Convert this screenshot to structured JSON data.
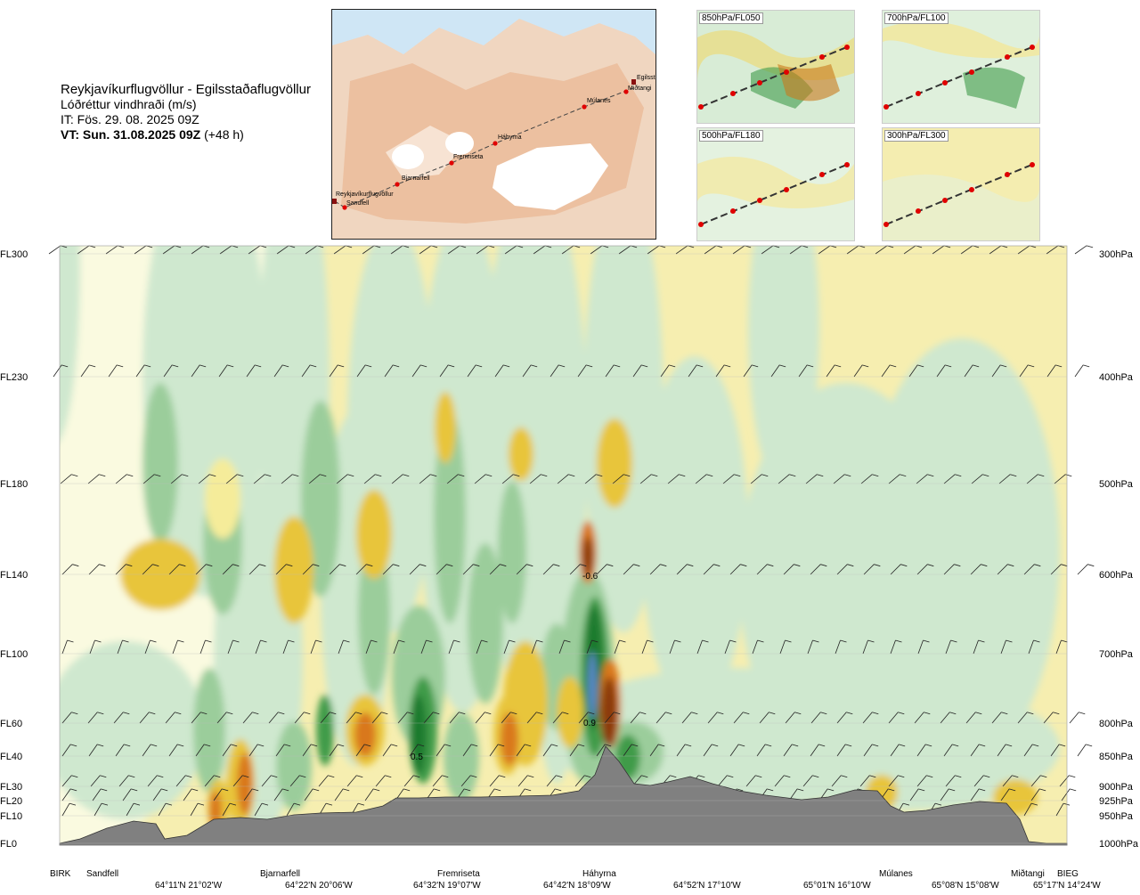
{
  "header": {
    "title": "Reykjavíkurflugvöllur - Egilsstaðaflugvöllur",
    "subtitle": "Lóðréttur vindhraði (m/s)",
    "issue_time": "IT: Fös. 29. 08. 2025 09Z",
    "valid_time": "VT: Sun. 31.08.2025 09Z",
    "valid_offset": "(+48 h)"
  },
  "map": {
    "route_points": [
      "Reykjavíkurflugvöllur",
      "Sandfell",
      "Bjarnarfell",
      "Fremriseta",
      "Háhyrna",
      "Múlanes",
      "Egilsstaðir",
      "Miðtangi"
    ]
  },
  "thumbnails": [
    {
      "label": "850hPa/FL050"
    },
    {
      "label": "700hPa/FL100"
    },
    {
      "label": "500hPa/FL180"
    },
    {
      "label": "300hPa/FL300"
    }
  ],
  "chart_data": {
    "type": "heatmap",
    "title": "Lóðréttur vindhraði (m/s)",
    "levels": [
      {
        "fl": "FL300",
        "hpa": "300hPa"
      },
      {
        "fl": "FL230",
        "hpa": "400hPa"
      },
      {
        "fl": "FL180",
        "hpa": "500hPa"
      },
      {
        "fl": "FL140",
        "hpa": "600hPa"
      },
      {
        "fl": "FL100",
        "hpa": "700hPa"
      },
      {
        "fl": "FL60",
        "hpa": "800hPa"
      },
      {
        "fl": "FL40",
        "hpa": "850hPa"
      },
      {
        "fl": "FL30",
        "hpa": "900hPa"
      },
      {
        "fl": "FL20",
        "hpa": "925hPa"
      },
      {
        "fl": "FL10",
        "hpa": "950hPa"
      },
      {
        "fl": "FL0",
        "hpa": "1000hPa"
      }
    ],
    "waypoints": [
      "BIRK",
      "Sandfell",
      "Bjarnarfell",
      "Fremriseta",
      "Háhyrna",
      "Múlanes",
      "Miðtangi",
      "BIEG"
    ],
    "coordinates": [
      "64°11'N 21°02'W",
      "64°22'N 20°06'W",
      "64°32'N 19°07'W",
      "64°42'N 18°09'W",
      "64°52'N 17°10'W",
      "65°01'N 16°10'W",
      "65°08'N 15°08'W",
      "65°17'N 14°24'W"
    ],
    "contour_labels": [
      "-0.6",
      "0.9",
      "0.5"
    ],
    "colors": {
      "strong_down": "#8b3a0e",
      "down2": "#d9781a",
      "down1": "#e8c53a",
      "weak_down": "#f5ec9a",
      "neutral": "#fafae0",
      "weak_up": "#cfe8cf",
      "up1": "#9bcd9b",
      "up2": "#3f9b4a",
      "strong_up": "#1f7a2e",
      "core_up": "#5a88c8",
      "terrain": "#808080"
    }
  }
}
